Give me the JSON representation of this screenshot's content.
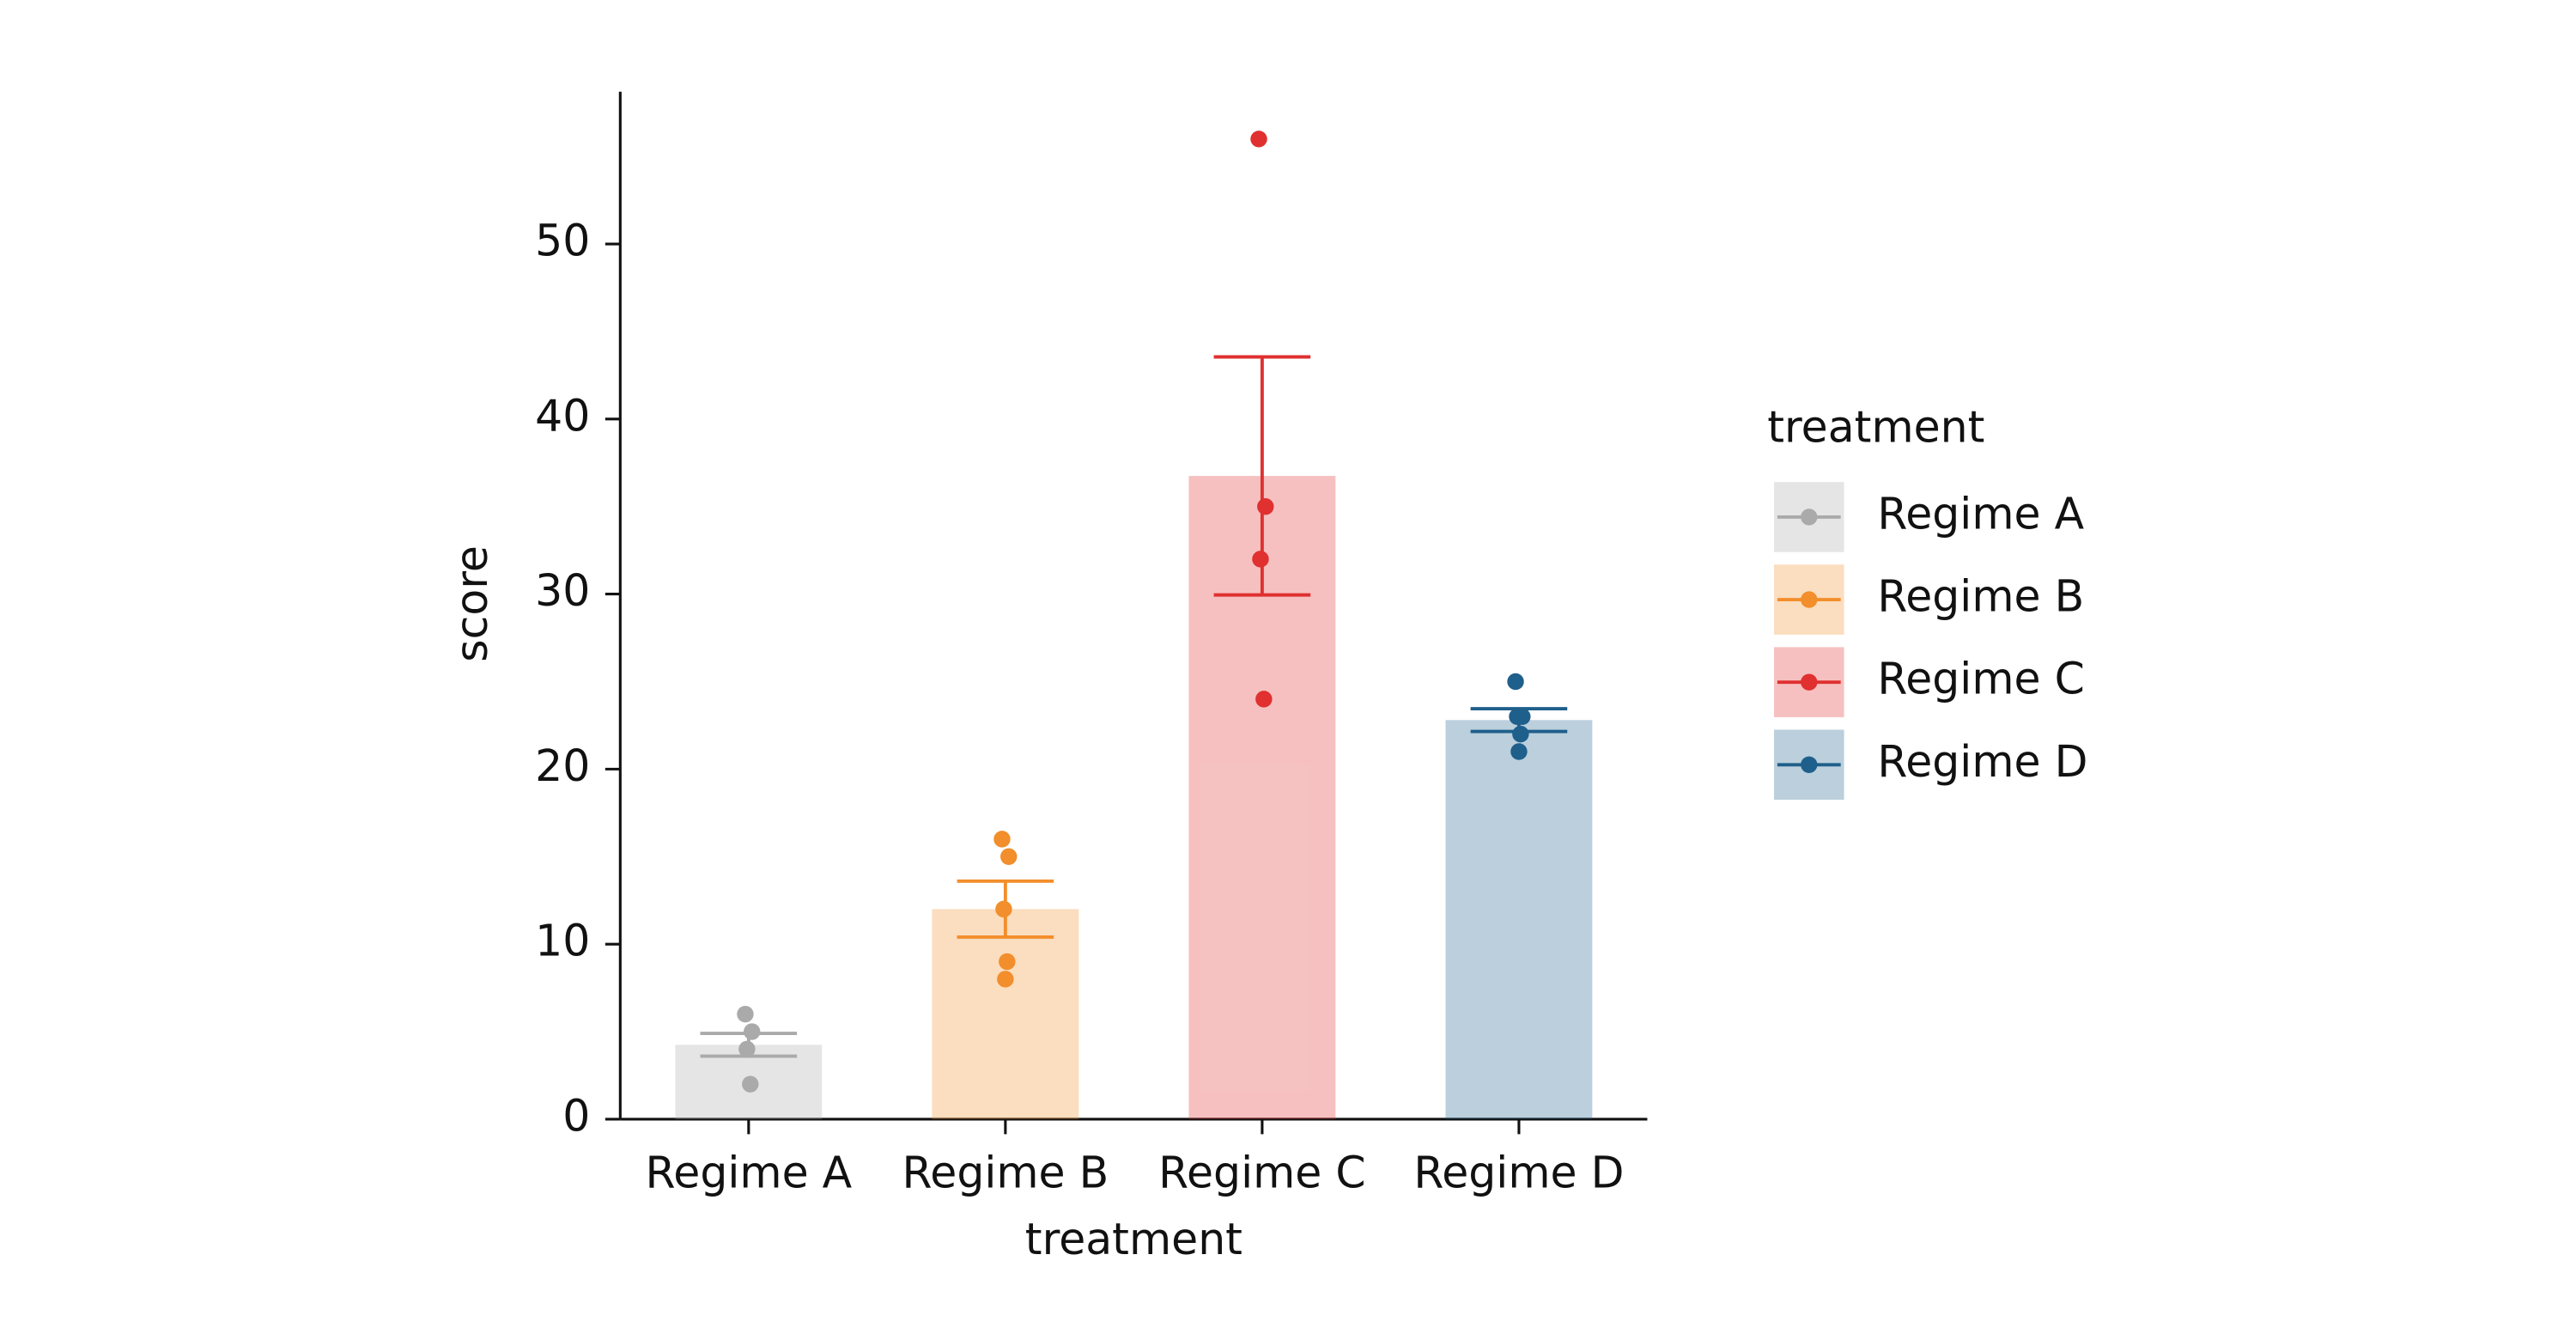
{
  "chart_data": {
    "type": "bar",
    "x_label": "treatment",
    "y_label": "score",
    "legend_title": "treatment",
    "categories": [
      "Regime A",
      "Regime B",
      "Regime C",
      "Regime D"
    ],
    "values": [
      4.25,
      12,
      36.75,
      22.8
    ],
    "errors": [
      0.65,
      1.6,
      6.8,
      0.65
    ],
    "points": [
      [
        6,
        5,
        4,
        2
      ],
      [
        16,
        15,
        12,
        9,
        8
      ],
      [
        56,
        35,
        32,
        24
      ],
      [
        25,
        23,
        23,
        22,
        21
      ]
    ],
    "colors": [
      "#aaaaaa",
      "#f28e2b",
      "#e03030",
      "#1f5f8b"
    ],
    "bar_opacity": 0.3,
    "ylim": [
      0,
      58.7
    ],
    "yticks": [
      0,
      10,
      20,
      30,
      40,
      50
    ],
    "legend": "right"
  }
}
